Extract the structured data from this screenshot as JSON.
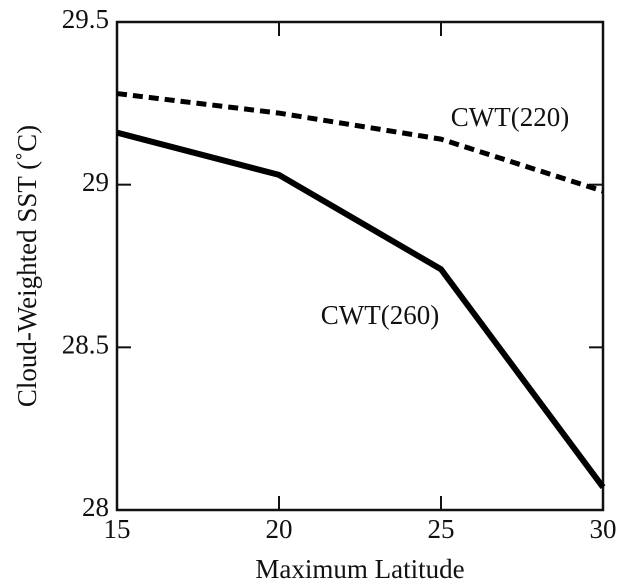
{
  "chart_data": {
    "type": "line",
    "x_label": "Maximum Latitude",
    "y_label": "Cloud-Weighted SST (˚C)",
    "x": [
      15,
      20,
      25,
      30
    ],
    "series": [
      {
        "name": "CWT(220)",
        "color": "#000000",
        "dashed": true,
        "values": [
          29.28,
          29.22,
          29.14,
          28.98
        ]
      },
      {
        "name": "CWT(260)",
        "color": "#000000",
        "dashed": false,
        "values": [
          29.16,
          29.03,
          28.74,
          28.07
        ]
      }
    ],
    "xlim": [
      15,
      30
    ],
    "xticks": [
      15,
      20,
      25,
      30
    ],
    "ylim": [
      28,
      29.5
    ],
    "yticks": [
      28,
      28.5,
      29,
      29.5
    ],
    "grid": false
  }
}
